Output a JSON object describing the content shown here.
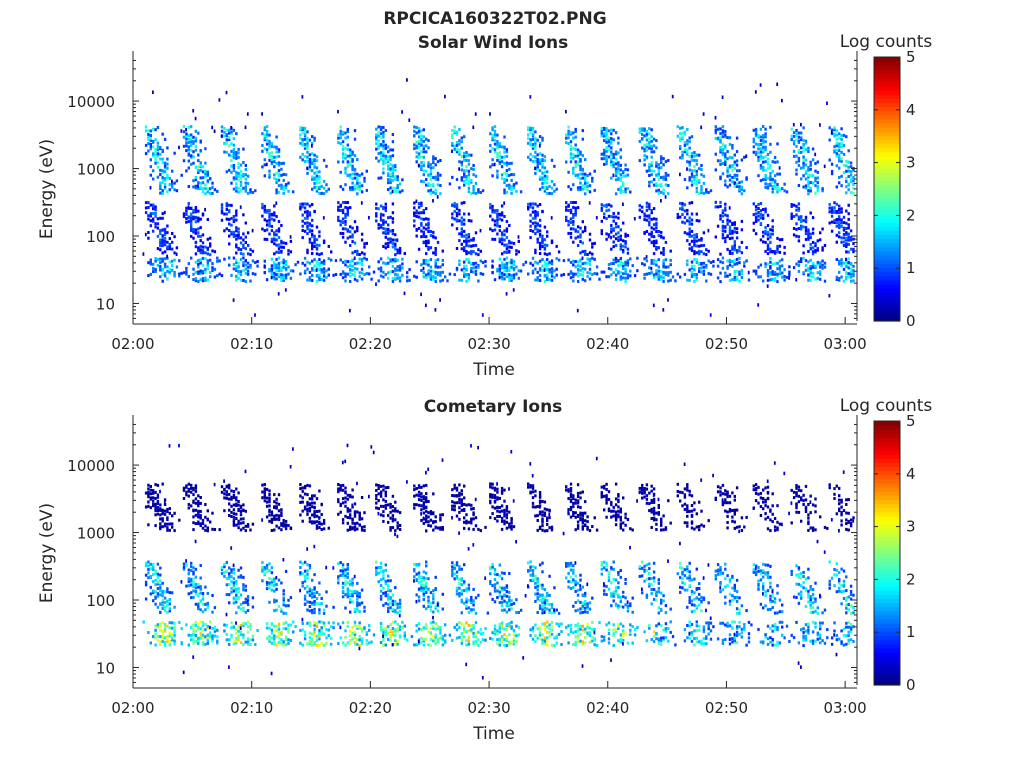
{
  "figure": {
    "title": "RPCICA160322T02.PNG"
  },
  "chart_data": [
    {
      "type": "heatmap",
      "title": "Solar Wind Ions",
      "xlabel": "Time",
      "ylabel": "Energy (eV)",
      "x_ticks": [
        "02:00",
        "02:10",
        "02:20",
        "02:30",
        "02:40",
        "02:50",
        "03:00"
      ],
      "x_range_min": [
        0,
        61
      ],
      "y_ticks": [
        10,
        100,
        1000,
        10000
      ],
      "y_scale": "log",
      "ylim": [
        5.5,
        45000
      ],
      "colorbar": {
        "label": "Log counts",
        "ticks": [
          0,
          1,
          2,
          3,
          4,
          5
        ],
        "range": [
          0,
          5
        ],
        "colormap": "jet"
      },
      "scan_period_min": 3.2,
      "scan_start_min": 1.0,
      "bands": [
        {
          "energy_range_eV": [
            20,
            45
          ],
          "peak_log_counts": 2.2,
          "description": "low energy band"
        },
        {
          "energy_range_eV": [
            50,
            300
          ],
          "peak_log_counts": 1.3
        },
        {
          "energy_range_eV": [
            400,
            4000
          ],
          "peak_log_counts": 2.4
        }
      ]
    },
    {
      "type": "heatmap",
      "title": "Cometary Ions",
      "xlabel": "Time",
      "ylabel": "Energy (eV)",
      "x_ticks": [
        "02:00",
        "02:10",
        "02:20",
        "02:30",
        "02:40",
        "02:50",
        "03:00"
      ],
      "x_range_min": [
        0,
        61
      ],
      "y_ticks": [
        10,
        100,
        1000,
        10000
      ],
      "y_scale": "log",
      "ylim": [
        5.5,
        45000
      ],
      "colorbar": {
        "label": "Log counts",
        "ticks": [
          0,
          1,
          2,
          3,
          4,
          5
        ],
        "range": [
          0,
          5
        ],
        "colormap": "jet"
      },
      "scan_period_min": 3.2,
      "scan_start_min": 1.0,
      "bands": [
        {
          "energy_range_eV": [
            20,
            45
          ],
          "peak_log_counts": 3.6
        },
        {
          "energy_range_eV": [
            60,
            350
          ],
          "peak_log_counts": 2.4
        },
        {
          "energy_range_eV": [
            1000,
            5000
          ],
          "peak_log_counts": 0.3
        }
      ]
    }
  ]
}
